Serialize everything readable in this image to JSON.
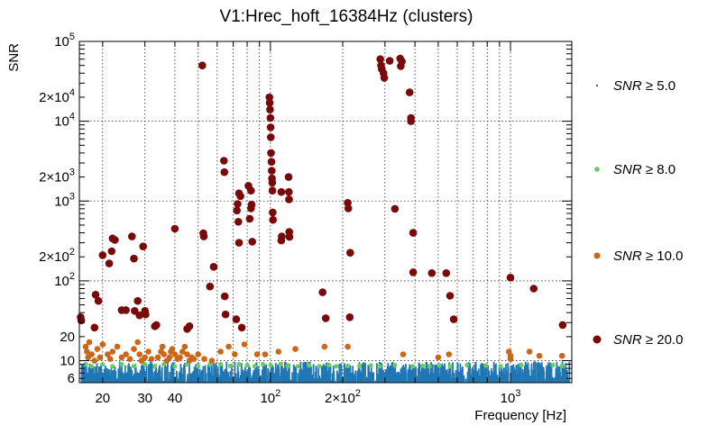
{
  "chart_data": {
    "type": "scatter",
    "title": "V1:Hrec_hoft_16384Hz (clusters)",
    "xlabel": "Frequency [Hz]",
    "ylabel": "SNR",
    "x_scale": "log",
    "y_scale": "log",
    "xlim": [
      16,
      1800
    ],
    "ylim": [
      5.3,
      100000
    ],
    "grid": true,
    "legend_position": "right",
    "x_ticks": [
      {
        "value": 20,
        "label": "20"
      },
      {
        "value": 30,
        "label": "30"
      },
      {
        "value": 40,
        "label": "40"
      },
      {
        "value": 100,
        "label": "10²"
      },
      {
        "value": 200,
        "label": "2×10²"
      },
      {
        "value": 1000,
        "label": "10³"
      }
    ],
    "y_ticks": [
      {
        "value": 6,
        "label": "6"
      },
      {
        "value": 10,
        "label": "10"
      },
      {
        "value": 20,
        "label": "20"
      },
      {
        "value": 100,
        "label": "10²"
      },
      {
        "value": 200,
        "label": "2×10²"
      },
      {
        "value": 1000,
        "label": "10³"
      },
      {
        "value": 2000,
        "label": "2×10³"
      },
      {
        "value": 10000,
        "label": "10⁴"
      },
      {
        "value": 20000,
        "label": "2×10⁴"
      },
      {
        "value": 100000,
        "label": "10⁵"
      }
    ],
    "series": [
      {
        "name": "SNR ≥ 5.0",
        "color": "#1f77b4",
        "marker": "dot",
        "points": []
      },
      {
        "name": "SNR ≥ 8.0",
        "color": "#66cc66",
        "marker": "circle-small",
        "points": [
          [
            17,
            9
          ],
          [
            18,
            8.5
          ],
          [
            20,
            9
          ],
          [
            22,
            8.5
          ],
          [
            24,
            9
          ],
          [
            27,
            8.5
          ],
          [
            30,
            9
          ],
          [
            33,
            8.5
          ],
          [
            36,
            9
          ],
          [
            40,
            8.5
          ],
          [
            45,
            9
          ],
          [
            50,
            8.5
          ],
          [
            56,
            9
          ],
          [
            62,
            9
          ],
          [
            68,
            8.6
          ],
          [
            74,
            9
          ],
          [
            80,
            8.8
          ],
          [
            86,
            8.5
          ],
          [
            93,
            9
          ],
          [
            100,
            8.8
          ],
          [
            110,
            9
          ],
          [
            118,
            8.6
          ],
          [
            130,
            8.5
          ],
          [
            145,
            8.7
          ],
          [
            160,
            8.5
          ],
          [
            175,
            8.8
          ],
          [
            188,
            8.5
          ],
          [
            210,
            8.6
          ],
          [
            235,
            8.6
          ],
          [
            262,
            8.7
          ],
          [
            285,
            8.5
          ],
          [
            330,
            8.8
          ],
          [
            392,
            8.5
          ],
          [
            430,
            8.6
          ],
          [
            460,
            8.5
          ],
          [
            505,
            8.7
          ],
          [
            560,
            8.5
          ],
          [
            660,
            8.8
          ],
          [
            790,
            8.7
          ],
          [
            910,
            8.5
          ],
          [
            1110,
            8.8
          ],
          [
            1500,
            8.8
          ],
          [
            1640,
            8.6
          ]
        ]
      },
      {
        "name": "SNR ≥ 10.0",
        "color": "#cc6619",
        "marker": "circle",
        "points": [
          [
            17,
            15
          ],
          [
            17.2,
            13
          ],
          [
            17.4,
            11
          ],
          [
            17.6,
            17
          ],
          [
            18,
            12
          ],
          [
            18.5,
            10
          ],
          [
            19,
            14
          ],
          [
            19.5,
            11
          ],
          [
            20,
            16
          ],
          [
            21,
            12
          ],
          [
            21.5,
            10.5
          ],
          [
            22,
            13
          ],
          [
            23,
            15
          ],
          [
            24,
            11
          ],
          [
            25,
            12
          ],
          [
            26,
            10.5
          ],
          [
            27,
            14
          ],
          [
            28,
            17
          ],
          [
            28.5,
            12
          ],
          [
            29,
            10
          ],
          [
            30,
            11
          ],
          [
            31,
            13
          ],
          [
            32,
            10.5
          ],
          [
            34,
            11
          ],
          [
            35,
            13
          ],
          [
            35.5,
            15
          ],
          [
            36,
            12
          ],
          [
            37,
            10
          ],
          [
            38,
            11
          ],
          [
            38.5,
            13
          ],
          [
            39,
            14
          ],
          [
            40,
            12
          ],
          [
            41,
            10.5
          ],
          [
            42,
            11
          ],
          [
            43,
            13
          ],
          [
            44,
            15
          ],
          [
            45,
            12
          ],
          [
            46,
            10
          ],
          [
            47,
            11
          ],
          [
            48,
            10.5
          ],
          [
            50,
            12
          ],
          [
            53,
            10.5
          ],
          [
            57,
            10
          ],
          [
            62,
            13
          ],
          [
            67,
            15
          ],
          [
            71,
            12
          ],
          [
            78,
            16
          ],
          [
            88,
            12
          ],
          [
            95,
            12
          ],
          [
            108,
            13
          ],
          [
            127,
            14
          ],
          [
            168,
            15
          ],
          [
            210,
            15
          ],
          [
            357,
            12
          ],
          [
            500,
            11
          ],
          [
            554,
            12
          ],
          [
            985,
            13
          ],
          [
            1000,
            11.5
          ],
          [
            1000,
            10.5
          ],
          [
            1200,
            13
          ],
          [
            1320,
            11.5
          ],
          [
            1640,
            11.5
          ]
        ]
      },
      {
        "name": "SNR ≥ 20.0",
        "color": "#7a0a0a",
        "marker": "circle-large",
        "points": [
          [
            16.2,
            35
          ],
          [
            16.3,
            32
          ],
          [
            18.5,
            26
          ],
          [
            18.7,
            67
          ],
          [
            19.2,
            56
          ],
          [
            20,
            210
          ],
          [
            21.3,
            165
          ],
          [
            21.8,
            235
          ],
          [
            22,
            340
          ],
          [
            22.5,
            325
          ],
          [
            24,
            43
          ],
          [
            25,
            43
          ],
          [
            26.5,
            360
          ],
          [
            27,
            190
          ],
          [
            27.2,
            42
          ],
          [
            28,
            56
          ],
          [
            28.5,
            37
          ],
          [
            29.5,
            270
          ],
          [
            30,
            42
          ],
          [
            30.2,
            38
          ],
          [
            33,
            27
          ],
          [
            33.5,
            28
          ],
          [
            40,
            450
          ],
          [
            45,
            25
          ],
          [
            46,
            27
          ],
          [
            52,
            50000
          ],
          [
            52.5,
            395
          ],
          [
            52.8,
            360
          ],
          [
            56,
            85
          ],
          [
            58,
            150
          ],
          [
            64,
            3200
          ],
          [
            64.3,
            2300
          ],
          [
            64.5,
            64
          ],
          [
            65,
            38
          ],
          [
            72,
            33
          ],
          [
            72.5,
            760
          ],
          [
            73,
            920
          ],
          [
            74,
            1250
          ],
          [
            75,
            1150
          ],
          [
            73.5,
            550
          ],
          [
            74,
            300
          ],
          [
            76,
            26
          ],
          [
            81,
            1550
          ],
          [
            83,
            1350
          ],
          [
            83.5,
            900
          ],
          [
            83,
            810
          ],
          [
            82,
            600
          ],
          [
            84,
            310
          ],
          [
            99,
            20000
          ],
          [
            99.3,
            17000
          ],
          [
            99.6,
            14000
          ],
          [
            100,
            11000
          ],
          [
            100.2,
            8400
          ],
          [
            100.4,
            6300
          ],
          [
            100.6,
            4000
          ],
          [
            101,
            3100
          ],
          [
            101.3,
            2400
          ],
          [
            101.5,
            1920
          ],
          [
            101.8,
            1700
          ],
          [
            102,
            1350
          ],
          [
            102.2,
            720
          ],
          [
            102.5,
            580
          ],
          [
            111,
            1300
          ],
          [
            111.5,
            360
          ],
          [
            111,
            320
          ],
          [
            119,
            2000
          ],
          [
            119.3,
            1300
          ],
          [
            119.5,
            1050
          ],
          [
            119.8,
            410
          ],
          [
            120,
            355
          ],
          [
            165,
            72
          ],
          [
            170,
            34
          ],
          [
            210,
            950
          ],
          [
            211,
            810
          ],
          [
            215,
            225
          ],
          [
            214,
            35
          ],
          [
            287,
            60000
          ],
          [
            289,
            50000
          ],
          [
            291,
            45000
          ],
          [
            296,
            40000
          ],
          [
            298,
            35000
          ],
          [
            314,
            57000
          ],
          [
            330,
            800
          ],
          [
            347,
            61000
          ],
          [
            349,
            49000
          ],
          [
            353,
            56000
          ],
          [
            380,
            23000
          ],
          [
            385,
            11000
          ],
          [
            385,
            10000
          ],
          [
            393,
            400
          ],
          [
            393,
            128
          ],
          [
            470,
            125
          ],
          [
            540,
            125
          ],
          [
            560,
            65
          ],
          [
            580,
            33
          ],
          [
            1000,
            110
          ],
          [
            1250,
            80
          ],
          [
            1650,
            28
          ]
        ]
      }
    ]
  }
}
